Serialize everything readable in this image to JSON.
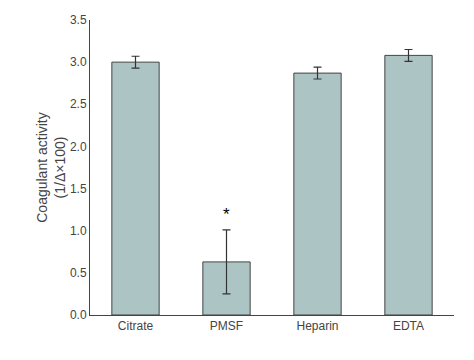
{
  "chart_data": {
    "type": "bar",
    "categories": [
      "Citrate",
      "PMSF",
      "Heparin",
      "EDTA"
    ],
    "values": [
      3.0,
      0.63,
      2.87,
      3.08
    ],
    "errors": [
      0.07,
      0.38,
      0.07,
      0.07
    ],
    "color": "#adc4c4",
    "ylabel": "Coagulant activity\n(1/Δ×100)",
    "ylim": [
      0,
      3.5
    ],
    "yticks": [
      {
        "value": 0.0,
        "label": "0.0"
      },
      0.5,
      {
        "value": 1.0,
        "label": "1.0"
      },
      1.5,
      {
        "value": 2.0,
        "label": "2.0"
      },
      2.5,
      {
        "value": 3.0,
        "label": "3.0"
      },
      3.5
    ],
    "annotations": [
      {
        "text": "*",
        "category": "PMSF"
      }
    ],
    "grid": false
  }
}
